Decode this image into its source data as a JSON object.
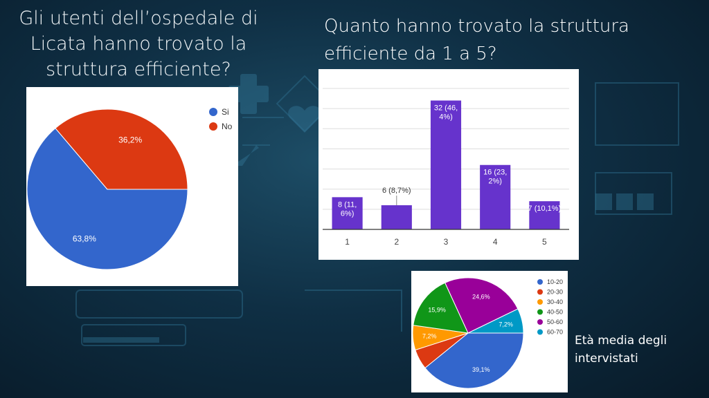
{
  "titles": {
    "left": "Gli utenti dell’ospedale di Licata hanno trovato la struttura efficiente?",
    "right": "Quanto hanno trovato la struttura efficiente da 1 a 5?"
  },
  "captions": {
    "age": "Età media degli intervistati"
  },
  "chart_data": [
    {
      "type": "pie",
      "title": "",
      "slices": [
        {
          "label": "Si",
          "value": 63.8,
          "display": "63,8%",
          "color": "#3366cc"
        },
        {
          "label": "No",
          "value": 36.2,
          "display": "36,2%",
          "color": "#dc3912"
        }
      ],
      "legend_position": "top-right"
    },
    {
      "type": "bar",
      "title": "",
      "categories": [
        "1",
        "2",
        "3",
        "4",
        "5"
      ],
      "values": [
        8,
        6,
        32,
        16,
        7
      ],
      "labels": [
        "8 (11,\n6%)",
        "6 (8,7%)",
        "32 (46,\n4%)",
        "16 (23,\n2%)",
        "7 (10,1%)"
      ],
      "color": "#6633cc",
      "ylim": [
        0,
        35
      ],
      "grid": true
    },
    {
      "type": "pie",
      "title": "",
      "slices": [
        {
          "label": "10-20",
          "value": 39.1,
          "display": "39,1%",
          "color": "#3366cc"
        },
        {
          "label": "20-30",
          "value": 5.9,
          "display": "",
          "color": "#dc3912"
        },
        {
          "label": "30-40",
          "value": 7.2,
          "display": "7,2%",
          "color": "#ff9900"
        },
        {
          "label": "40-50",
          "value": 15.9,
          "display": "15,9%",
          "color": "#109618"
        },
        {
          "label": "50-60",
          "value": 24.6,
          "display": "24,6%",
          "color": "#990099"
        },
        {
          "label": "60-70",
          "value": 7.2,
          "display": "7,2%",
          "color": "#0099c6"
        }
      ],
      "legend_position": "right"
    }
  ]
}
